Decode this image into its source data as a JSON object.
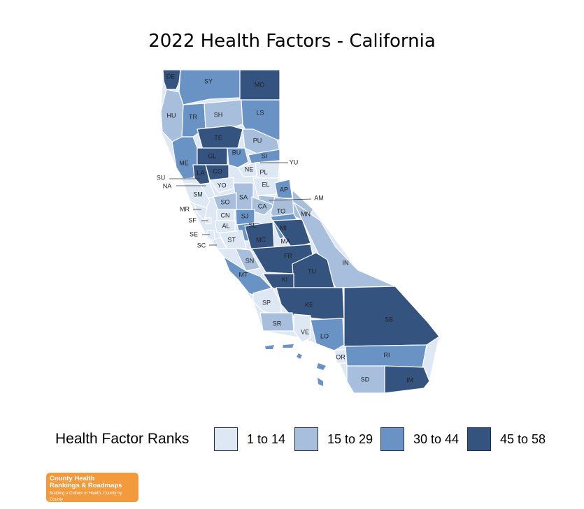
{
  "title": "2022 Health Factors - California",
  "colors": {
    "bin1": "#dde8f4",
    "bin2": "#a7bfdd",
    "bin3": "#6a93c5",
    "bin4": "#35537f",
    "border": "#ffffff"
  },
  "legend": {
    "title": "Health Factor Ranks",
    "items": [
      {
        "label": "1 to 14",
        "bin": 1
      },
      {
        "label": "15 to 29",
        "bin": 2
      },
      {
        "label": "30 to 44",
        "bin": 3
      },
      {
        "label": "45 to 58",
        "bin": 4
      }
    ]
  },
  "counties": [
    {
      "code": "DE",
      "bin": 4
    },
    {
      "code": "SY",
      "bin": 3
    },
    {
      "code": "MO",
      "bin": 4
    },
    {
      "code": "HU",
      "bin": 2
    },
    {
      "code": "TR",
      "bin": 3
    },
    {
      "code": "SH",
      "bin": 2
    },
    {
      "code": "LS",
      "bin": 3
    },
    {
      "code": "TE",
      "bin": 4
    },
    {
      "code": "PU",
      "bin": 2
    },
    {
      "code": "ME",
      "bin": 3
    },
    {
      "code": "GL",
      "bin": 4
    },
    {
      "code": "BU",
      "bin": 3
    },
    {
      "code": "SI",
      "bin": 3
    },
    {
      "code": "YU",
      "bin": 2
    },
    {
      "code": "SU",
      "bin": 3
    },
    {
      "code": "LA",
      "bin": 4
    },
    {
      "code": "CO",
      "bin": 4
    },
    {
      "code": "NE",
      "bin": 1
    },
    {
      "code": "PL",
      "bin": 1
    },
    {
      "code": "NA",
      "bin": 1
    },
    {
      "code": "YO",
      "bin": 1
    },
    {
      "code": "EL",
      "bin": 1
    },
    {
      "code": "AP",
      "bin": 3
    },
    {
      "code": "AM",
      "bin": 2
    },
    {
      "code": "SM",
      "bin": 1
    },
    {
      "code": "SA",
      "bin": 2
    },
    {
      "code": "SO",
      "bin": 2
    },
    {
      "code": "CA",
      "bin": 2
    },
    {
      "code": "TO",
      "bin": 2
    },
    {
      "code": "MN",
      "bin": 2
    },
    {
      "code": "MR",
      "bin": 1
    },
    {
      "code": "CN",
      "bin": 1
    },
    {
      "code": "SJ",
      "bin": 3
    },
    {
      "code": "SF",
      "bin": 1
    },
    {
      "code": "AL",
      "bin": 1
    },
    {
      "code": "SL",
      "bin": 3
    },
    {
      "code": "MI",
      "bin": 3
    },
    {
      "code": "SE",
      "bin": 1
    },
    {
      "code": "SC",
      "bin": 1
    },
    {
      "code": "ST",
      "bin": 1
    },
    {
      "code": "MC",
      "bin": 4
    },
    {
      "code": "MA",
      "bin": 4
    },
    {
      "code": "IN",
      "bin": 2
    },
    {
      "code": "SN",
      "bin": 2
    },
    {
      "code": "FR",
      "bin": 4
    },
    {
      "code": "MT",
      "bin": 3
    },
    {
      "code": "TU",
      "bin": 4
    },
    {
      "code": "KI",
      "bin": 4
    },
    {
      "code": "SP",
      "bin": 1
    },
    {
      "code": "KE",
      "bin": 4
    },
    {
      "code": "SB",
      "bin": 4
    },
    {
      "code": "SR",
      "bin": 2
    },
    {
      "code": "VE",
      "bin": 1
    },
    {
      "code": "LO",
      "bin": 3
    },
    {
      "code": "OR",
      "bin": 1
    },
    {
      "code": "RI",
      "bin": 3
    },
    {
      "code": "SD",
      "bin": 2
    },
    {
      "code": "IM",
      "bin": 4
    }
  ],
  "logo": {
    "line1": "County Health",
    "line2": "Rankings & Roadmaps",
    "line3": "Building a Culture of Health, County by County"
  }
}
